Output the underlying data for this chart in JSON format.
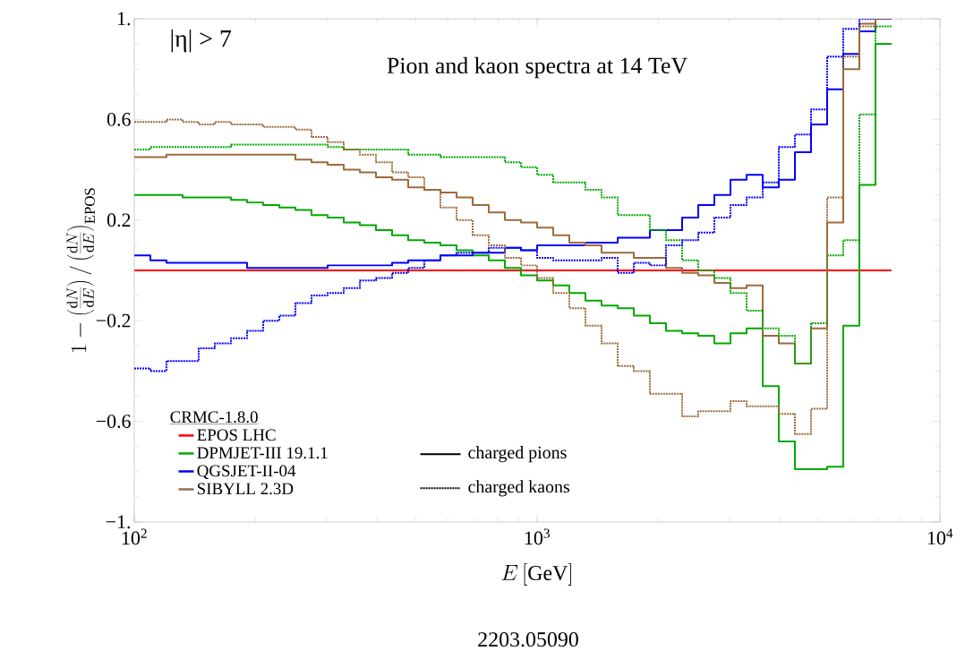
{
  "chart_data": {
    "type": "step",
    "title": "Pion and kaon spectra at 14 TeV",
    "xlabel": "E\\,[\\mathrm{GeV}]",
    "ylabel": "1-\\left(\\frac{\\mathrm{d}N}{\\mathrm{d}E}\\right)/\\left(\\frac{\\mathrm{d}N}{\\mathrm{d}E}\\right)_{\\mathrm{EPOS}}",
    "legend_title": "CRMC-1.8.0",
    "annotations": [
      "|η| > 7",
      "charged pions",
      "charged kaons",
      "2203.05090"
    ],
    "log": "x",
    "grid": false,
    "legend": "bottom left",
    "xlim": [
      100,
      10000
    ],
    "ylim": [
      -1,
      1
    ],
    "xticks": [
      {
        "value": 100,
        "label": "10$^{2}$"
      },
      {
        "value": 1000,
        "label": "10$^{3}$"
      },
      {
        "value": 10000,
        "label": "10$^{4}$"
      }
    ],
    "yticks": [
      {
        "value": -1,
        "label": "−1."
      },
      {
        "value": -0.6,
        "label": "−0.6"
      },
      {
        "value": -0.2,
        "label": "−0.2"
      },
      0.2,
      0.6,
      {
        "value": 1,
        "label": "1."
      }
    ],
    "x": [
      100,
      109.6,
      120.2,
      131.8,
      144.5,
      158.5,
      173.8,
      190.5,
      208.9,
      229.1,
      251.2,
      275.4,
      302.0,
      331.1,
      363.1,
      398.1,
      436.5,
      478.6,
      524.8,
      575.4,
      631.0,
      691.8,
      758.6,
      831.8,
      912.0,
      1000,
      1096,
      1202,
      1318,
      1445,
      1585,
      1738,
      1905,
      2089,
      2291,
      2512,
      2754,
      3020,
      3311,
      3631,
      3981,
      4365,
      4786,
      5248,
      5754,
      6310,
      6918,
      7586
    ],
    "series": [
      {
        "name": "EPOS LHC",
        "color": "#ff0000",
        "line_style": "solid",
        "values": [
          0,
          0,
          0,
          0,
          0,
          0,
          0,
          0,
          0,
          0,
          0,
          0,
          0,
          0,
          0,
          0,
          0,
          0,
          0,
          0,
          0,
          0,
          0,
          0,
          0,
          0,
          0,
          0,
          0,
          0,
          0,
          0,
          0,
          0,
          0,
          0,
          0,
          0,
          0,
          0,
          0,
          0,
          0,
          0,
          0,
          0,
          0,
          0
        ]
      },
      {
        "name": "DPMJET-III 19.1.1",
        "color": "#00aa00",
        "line_style": "solid",
        "values": [
          0.3,
          0.3,
          0.3,
          0.29,
          0.29,
          0.29,
          0.28,
          0.27,
          0.26,
          0.25,
          0.24,
          0.22,
          0.21,
          0.19,
          0.18,
          0.16,
          0.14,
          0.12,
          0.11,
          0.1,
          0.08,
          0.06,
          0.04,
          0.01,
          -0.02,
          -0.04,
          -0.06,
          -0.09,
          -0.12,
          -0.14,
          -0.15,
          -0.18,
          -0.21,
          -0.24,
          -0.25,
          -0.26,
          -0.29,
          -0.25,
          -0.23,
          -0.46,
          -0.68,
          -0.79,
          -0.79,
          -0.78,
          -0.22,
          0.34,
          0.9,
          0.9
        ]
      },
      {
        "name": "QGSJET-II-04",
        "color": "#0000ff",
        "line_style": "solid",
        "values": [
          0.06,
          0.04,
          0.03,
          0.03,
          0.03,
          0.03,
          0.03,
          0.01,
          0.01,
          0.01,
          0.01,
          0.01,
          0.02,
          0.02,
          0.02,
          0.02,
          0.03,
          0.04,
          0.04,
          0.06,
          0.06,
          0.07,
          0.07,
          0.09,
          0.08,
          0.1,
          0.1,
          0.1,
          0.11,
          0.11,
          0.13,
          0.13,
          0.16,
          0.16,
          0.21,
          0.26,
          0.3,
          0.36,
          0.38,
          0.33,
          0.36,
          0.47,
          0.58,
          0.72,
          0.86,
          0.95,
          1.0,
          1.0
        ]
      },
      {
        "name": "SIBYLL 2.3D",
        "color": "#9c6b3c",
        "line_style": "solid",
        "values": [
          0.45,
          0.45,
          0.46,
          0.46,
          0.46,
          0.46,
          0.46,
          0.46,
          0.46,
          0.46,
          0.44,
          0.43,
          0.42,
          0.4,
          0.39,
          0.37,
          0.36,
          0.33,
          0.32,
          0.31,
          0.29,
          0.26,
          0.23,
          0.2,
          0.19,
          0.17,
          0.14,
          0.11,
          0.1,
          0.07,
          0.07,
          0.05,
          0.05,
          0.01,
          -0.01,
          -0.02,
          -0.05,
          -0.07,
          -0.06,
          -0.26,
          -0.29,
          -0.37,
          -0.23,
          0.19,
          0.8,
          0.98,
          1.0,
          1.0
        ]
      },
      {
        "color": "#00aa00",
        "line_style": "dotted",
        "values": [
          0.48,
          0.49,
          0.49,
          0.49,
          0.49,
          0.49,
          0.5,
          0.5,
          0.5,
          0.5,
          0.5,
          0.5,
          0.49,
          0.48,
          0.48,
          0.48,
          0.48,
          0.46,
          0.46,
          0.45,
          0.45,
          0.45,
          0.45,
          0.43,
          0.41,
          0.38,
          0.35,
          0.35,
          0.32,
          0.29,
          0.22,
          0.22,
          0.16,
          0.12,
          0.04,
          0.0,
          -0.03,
          -0.09,
          -0.16,
          -0.23,
          -0.26,
          -0.37,
          -0.21,
          0.06,
          0.12,
          0.62,
          0.97,
          0.97
        ]
      },
      {
        "color": "#0000ff",
        "line_style": "dotted",
        "values": [
          -0.39,
          -0.4,
          -0.36,
          -0.36,
          -0.31,
          -0.29,
          -0.27,
          -0.24,
          -0.2,
          -0.18,
          -0.13,
          -0.1,
          -0.09,
          -0.07,
          -0.04,
          -0.03,
          -0.01,
          0.01,
          0.04,
          0.06,
          0.07,
          0.07,
          0.09,
          0.09,
          0.08,
          0.05,
          0.04,
          0.04,
          0.04,
          0.05,
          -0.01,
          0.03,
          0.02,
          0.1,
          0.12,
          0.15,
          0.21,
          0.26,
          0.29,
          0.35,
          0.49,
          0.54,
          0.64,
          0.85,
          0.96,
          1.0,
          1.0,
          1.0
        ]
      },
      {
        "color": "#9c6b3c",
        "line_style": "dotted",
        "values": [
          0.59,
          0.59,
          0.6,
          0.59,
          0.58,
          0.59,
          0.58,
          0.58,
          0.57,
          0.57,
          0.56,
          0.53,
          0.51,
          0.48,
          0.46,
          0.43,
          0.39,
          0.37,
          0.32,
          0.25,
          0.2,
          0.14,
          0.1,
          0.05,
          0.02,
          -0.03,
          -0.09,
          -0.15,
          -0.22,
          -0.29,
          -0.38,
          -0.4,
          -0.49,
          -0.49,
          -0.58,
          -0.56,
          -0.56,
          -0.52,
          -0.54,
          -0.54,
          -0.57,
          -0.65,
          -0.55,
          0.29,
          0.85,
          0.97,
          1.0,
          1.0
        ]
      }
    ]
  }
}
